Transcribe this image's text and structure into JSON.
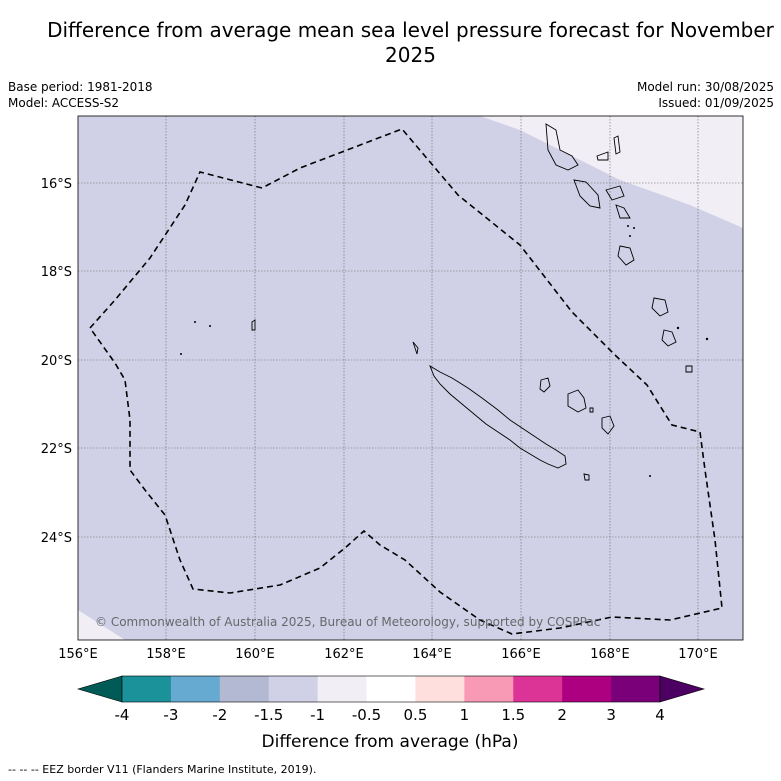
{
  "title": "Difference from average mean sea level pressure forecast for November 2025",
  "base_period": "Base period: 1981-2018",
  "model": "Model: ACCESS-S2",
  "model_run": "Model run: 30/08/2025",
  "issued": "Issued: 01/09/2025",
  "copyright": "© Commonwealth of Australia 2025, Bureau of Meteorology, supported by COSPPac",
  "footer": "--  --  -- EEZ border V11 (Flanders Marine Institute, 2019).",
  "colorbar": {
    "title": "Difference from average (hPa)",
    "labels": [
      "-4",
      "-3",
      "-2",
      "-1.5",
      "-1",
      "-0.5",
      "0.5",
      "1",
      "1.5",
      "2",
      "3",
      "4"
    ],
    "colors": [
      "#005a55",
      "#1b9199",
      "#66aad2",
      "#b3b9d3",
      "#d0d1e6",
      "#f2eef5",
      "#ffffff",
      "#ffdede",
      "#f89ab6",
      "#dc3496",
      "#ad0080",
      "#7a007a",
      "#4c0062"
    ]
  },
  "axes": {
    "x_ticks": [
      "156°E",
      "158°E",
      "160°E",
      "162°E",
      "164°E",
      "166°E",
      "168°E",
      "170°E"
    ],
    "y_ticks": [
      "16°S",
      "18°S",
      "20°S",
      "22°S",
      "24°S"
    ]
  },
  "map_colors": {
    "main_fill": "#d0d1e6",
    "light_fill": "#f2eef5"
  }
}
